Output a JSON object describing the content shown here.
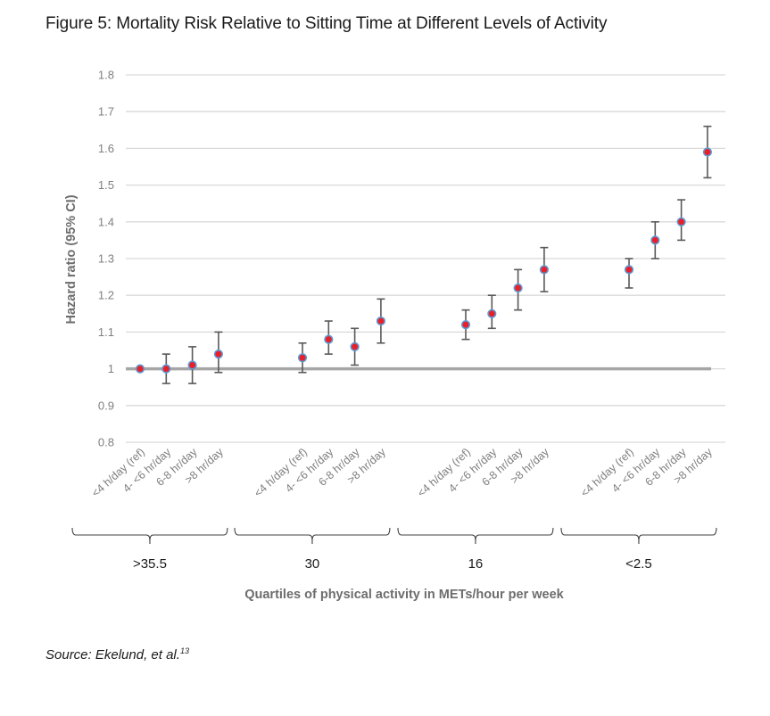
{
  "figure": {
    "title": "Figure 5: Mortality Risk Relative to Sitting Time at Different Levels of Activity",
    "source_text": "Source: Ekelund, et al.",
    "source_ref": "13"
  },
  "chart_data": {
    "type": "scatter",
    "title": "Figure 5: Mortality Risk Relative to Sitting Time at Different Levels of Activity",
    "xlabel": "Quartiles of physical activity in METs/hour per week",
    "ylabel": "Hazard ratio (95% CI)",
    "ylim": [
      0.8,
      1.8
    ],
    "yticks": [
      0.8,
      0.9,
      1,
      1.1,
      1.2,
      1.3,
      1.4,
      1.5,
      1.6,
      1.7,
      1.8
    ],
    "ytick_labels": [
      "0.8",
      "0.9",
      "1",
      "1.1",
      "1.2",
      "1.3",
      "1.4",
      "1.5",
      "1.6",
      "1.7",
      "1.8"
    ],
    "grid": true,
    "reference_line": 1.0,
    "legend": "none",
    "colors": {
      "marker_fill": "#e8202a",
      "marker_edge": "#5b9bd5",
      "error_bar": "#595959",
      "grid": "#d9d9d9",
      "reference": "#a6a6a6"
    },
    "categories": [
      "<4 h/day (ref)",
      "4- <6 hr/day",
      "6-8 hr/day",
      ">8 hr/day"
    ],
    "groups": [
      {
        "name": ">35.5",
        "values": [
          1.0,
          1.0,
          1.01,
          1.04
        ],
        "ci_low": [
          1.0,
          0.96,
          0.96,
          0.99
        ],
        "ci_high": [
          1.0,
          1.04,
          1.06,
          1.1
        ]
      },
      {
        "name": "30",
        "values": [
          1.03,
          1.08,
          1.06,
          1.13
        ],
        "ci_low": [
          0.99,
          1.04,
          1.01,
          1.07
        ],
        "ci_high": [
          1.07,
          1.13,
          1.11,
          1.19
        ]
      },
      {
        "name": "16",
        "values": [
          1.12,
          1.15,
          1.22,
          1.27
        ],
        "ci_low": [
          1.08,
          1.11,
          1.16,
          1.21
        ],
        "ci_high": [
          1.16,
          1.2,
          1.27,
          1.33
        ]
      },
      {
        "name": "<2.5",
        "values": [
          1.27,
          1.35,
          1.4,
          1.59
        ],
        "ci_low": [
          1.22,
          1.3,
          1.35,
          1.52
        ],
        "ci_high": [
          1.3,
          1.4,
          1.46,
          1.66
        ]
      }
    ]
  }
}
